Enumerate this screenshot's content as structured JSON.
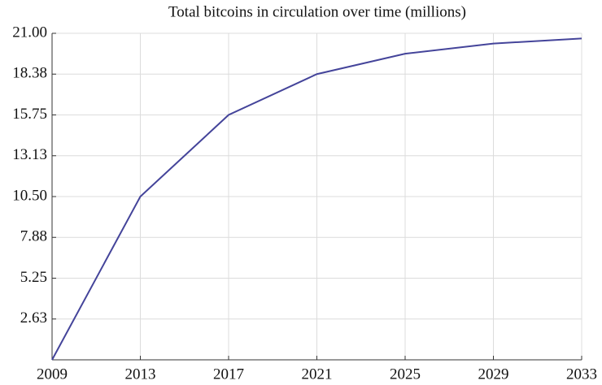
{
  "chart_data": {
    "type": "line",
    "title": "Total bitcoins in circulation over time (millions)",
    "x": [
      2009,
      2013,
      2017,
      2021,
      2025,
      2029,
      2033
    ],
    "values": [
      0,
      10.5,
      15.75,
      18.375,
      19.6875,
      20.34,
      20.67
    ],
    "color": "#44449a",
    "xlim": [
      2009,
      2033
    ],
    "xticks": [
      2009,
      2013,
      2017,
      2021,
      2025,
      2029,
      2033
    ],
    "ylim": [
      0,
      21
    ],
    "yticks": [
      {
        "value": 2.625,
        "label": "2.63"
      },
      5.25,
      {
        "value": 7.875,
        "label": "7.88"
      },
      {
        "value": 10.5,
        "label": "10.50"
      },
      {
        "value": 13.125,
        "label": "13.13"
      },
      15.75,
      {
        "value": 18.375,
        "label": "18.38"
      },
      {
        "value": 21,
        "label": "21.00"
      }
    ],
    "grid": true
  }
}
